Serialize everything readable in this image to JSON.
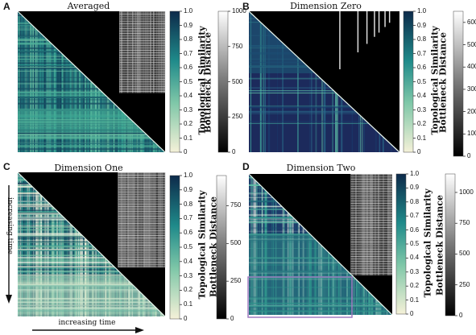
{
  "colors": {
    "teal_dark": "#0d2a4a",
    "teal_mid": "#1f8a8a",
    "teal_light": "#7fc7a8",
    "cream": "#f5f1d8",
    "navy": "#1c2a5c",
    "black": "#000000",
    "white": "#ffffff",
    "highlight_box": "#a07cc0"
  },
  "chart_data": [
    {
      "type": "heatmap",
      "panel_letter": "A",
      "title": "Averaged",
      "colorbars": [
        {
          "label": "Topological Similarity",
          "ticks": [
            "0",
            "0.1",
            "0.2",
            "0.3",
            "0.4",
            "0.5",
            "0.6",
            "0.7",
            "0.8",
            "0.9",
            "1.0"
          ],
          "range": [
            0,
            1
          ]
        },
        {
          "label": "Bottleneck Distance",
          "ticks": [
            "0",
            "250",
            "500",
            "750",
            "1000"
          ],
          "range": [
            0,
            1000
          ]
        }
      ]
    },
    {
      "type": "heatmap",
      "panel_letter": "B",
      "title": "Dimension Zero",
      "colorbars": [
        {
          "label": "Topological Similarity",
          "ticks": [
            "0",
            "0.1",
            "0.2",
            "0.3",
            "0.4",
            "0.5",
            "0.6",
            "0.7",
            "0.8",
            "0.9",
            "1.0"
          ],
          "range": [
            0,
            1
          ]
        },
        {
          "label": "Bottleneck Distance",
          "ticks": [
            "0",
            "100",
            "200",
            "300",
            "400",
            "500",
            "600"
          ],
          "range": [
            0,
            650
          ]
        }
      ]
    },
    {
      "type": "heatmap",
      "panel_letter": "C",
      "title": "Dimension One",
      "colorbars": [
        {
          "label": "Topological Similarity",
          "ticks": [
            "0",
            "0.1",
            "0.2",
            "0.3",
            "0.4",
            "0.5",
            "0.6",
            "0.7",
            "0.8",
            "0.9",
            "1.0"
          ],
          "range": [
            0,
            1
          ]
        },
        {
          "label": "Bottleneck Distance",
          "ticks": [
            "0",
            "250",
            "500",
            "750"
          ],
          "range": [
            0,
            950
          ]
        }
      ]
    },
    {
      "type": "heatmap",
      "panel_letter": "D",
      "title": "Dimension Two",
      "colorbars": [
        {
          "label": "Topological Similarity",
          "ticks": [
            "0",
            "0.1",
            "0.2",
            "0.3",
            "0.4",
            "0.5",
            "0.6",
            "0.7",
            "0.8",
            "0.9",
            "1.0"
          ],
          "range": [
            0,
            1
          ]
        },
        {
          "label": "Bottleneck Distance",
          "ticks": [
            "0",
            "250",
            "500",
            "750",
            "1000"
          ],
          "range": [
            0,
            1150
          ]
        }
      ]
    }
  ],
  "annotations": {
    "y_arrow_label": "increasing time",
    "x_arrow_label": "increasing time"
  }
}
